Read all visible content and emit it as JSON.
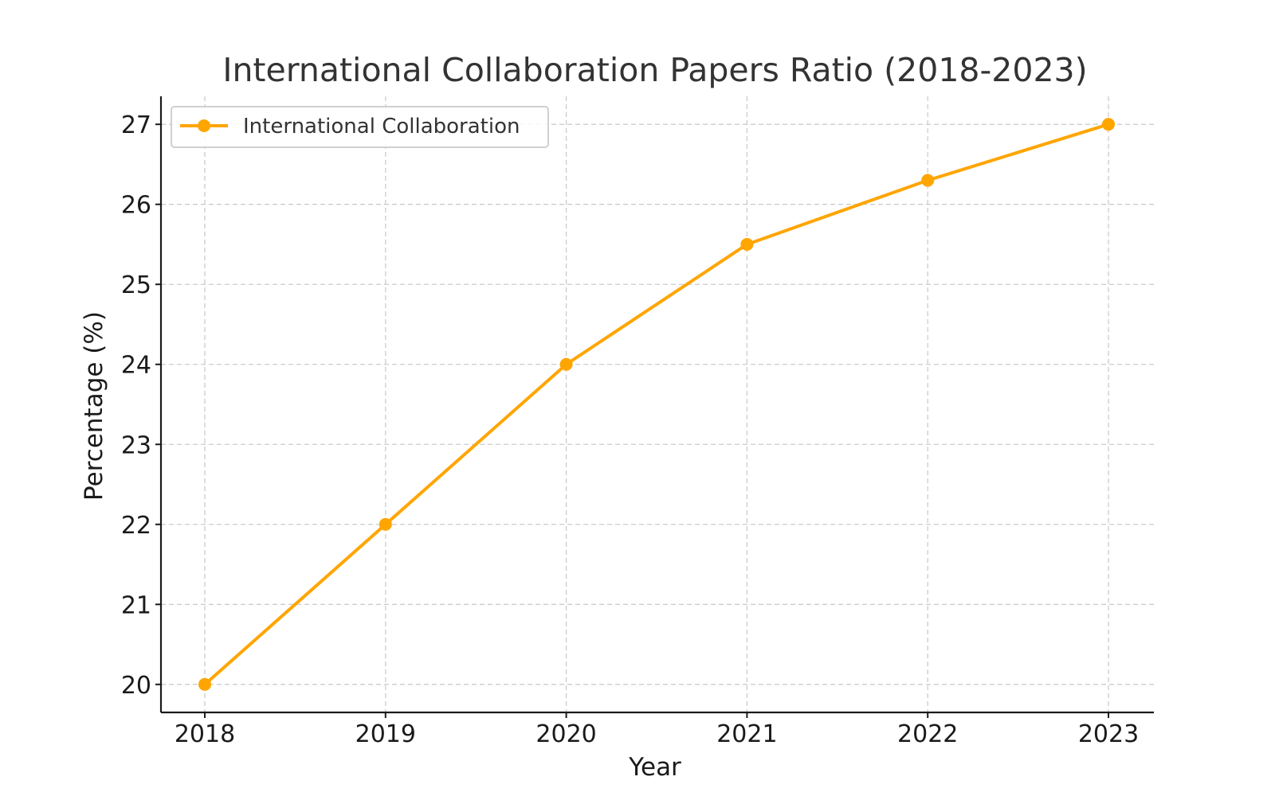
{
  "chart_data": {
    "type": "line",
    "title": "International Collaboration Papers Ratio (2018-2023)",
    "xlabel": "Year",
    "ylabel": "Percentage (%)",
    "categories": [
      "2018",
      "2019",
      "2020",
      "2021",
      "2022",
      "2023"
    ],
    "yticks": [
      "20",
      "21",
      "22",
      "23",
      "24",
      "25",
      "26",
      "27"
    ],
    "ylim": [
      19.65,
      27.35
    ],
    "grid": true,
    "legend_position": "top-left",
    "series": [
      {
        "name": "International Collaboration",
        "color": "#FFA500",
        "values": [
          20,
          22,
          24,
          25.5,
          26.3,
          27
        ]
      }
    ]
  }
}
